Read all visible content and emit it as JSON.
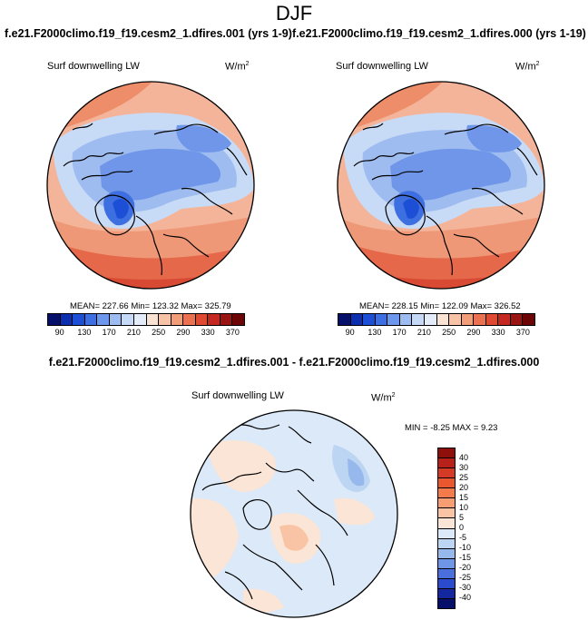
{
  "page_title": "DJF",
  "maps": [
    {
      "case_title": "f.e21.F2000climo.f19_f19.cesm2_1.dfires.001 (yrs 1-9)",
      "variable": "Surf downwelling LW",
      "units": "W/m",
      "units_sup": "2",
      "stats": "MEAN= 227.66  Min= 123.32  Max= 325.79"
    },
    {
      "case_title": "f.e21.F2000climo.f19_f19.cesm2_1.dfires.000 (yrs 1-19)",
      "variable": "Surf downwelling LW",
      "units": "W/m",
      "units_sup": "2",
      "stats": "MEAN= 228.15  Min= 122.09  Max= 326.52"
    }
  ],
  "abs_colorbar": {
    "colors": [
      "#06106a",
      "#0c2fb1",
      "#1d4fd6",
      "#3e6fe0",
      "#6b97ec",
      "#9dbdf2",
      "#c6daf8",
      "#e3ecf8",
      "#fbe3d3",
      "#f7c3a6",
      "#f39d78",
      "#ec7150",
      "#de4a32",
      "#c42820",
      "#9a1511",
      "#6c0505"
    ],
    "ticks": [
      "90",
      "130",
      "170",
      "210",
      "250",
      "290",
      "330",
      "370"
    ]
  },
  "diff": {
    "title": "f.e21.F2000climo.f19_f19.cesm2_1.dfires.001 - f.e21.F2000climo.f19_f19.cesm2_1.dfires.000",
    "variable": "Surf downwelling LW",
    "units": "W/m",
    "units_sup": "2",
    "stats": "MIN =  -8.25 MAX =   9.23",
    "colorbar": {
      "colors": [
        "#8e0f0b",
        "#b8201a",
        "#d53a26",
        "#e9572f",
        "#f37a4a",
        "#f69d74",
        "#f9c4a5",
        "#fbe5d6",
        "#dbe9f8",
        "#bcd5f2",
        "#97b8ec",
        "#6f95e6",
        "#4a6fdc",
        "#2b4bcf",
        "#14279f",
        "#06106a"
      ],
      "ticks": [
        "40",
        "30",
        "25",
        "20",
        "15",
        "10",
        "5",
        "0",
        "-5",
        "-10",
        "-15",
        "-20",
        "-25",
        "-30",
        "-40"
      ]
    }
  }
}
